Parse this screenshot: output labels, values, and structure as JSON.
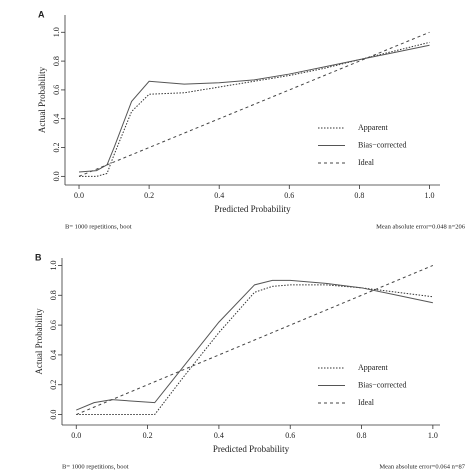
{
  "chart_data": [
    {
      "type": "line",
      "panel": "A",
      "xlabel": "Predicted Probability",
      "ylabel": "Actual Probability",
      "note_left": "B= 1000 repetitions, boot",
      "note_right": "Mean absolute error=0.048 n=206",
      "x": [
        0,
        0.05,
        0.08,
        0.1,
        0.15,
        0.2,
        0.3,
        0.4,
        0.5,
        0.6,
        0.7,
        0.8,
        0.9,
        1.0
      ],
      "series": [
        {
          "name": "Apparent",
          "color": "#333333",
          "dash": "1.5,1.5",
          "values": [
            0,
            0,
            0.02,
            0.15,
            0.45,
            0.57,
            0.58,
            0.62,
            0.66,
            0.7,
            0.75,
            0.81,
            0.87,
            0.93
          ]
        },
        {
          "name": "Bias−corrected",
          "color": "#555555",
          "dash": "none",
          "values": [
            0.03,
            0.04,
            0.08,
            0.2,
            0.52,
            0.66,
            0.64,
            0.65,
            0.67,
            0.71,
            0.76,
            0.81,
            0.86,
            0.91
          ]
        },
        {
          "name": "Ideal",
          "color": "#444444",
          "dash": "3,3",
          "values": [
            0,
            0.05,
            0.08,
            0.1,
            0.15,
            0.2,
            0.3,
            0.4,
            0.5,
            0.6,
            0.7,
            0.8,
            0.9,
            1.0
          ]
        }
      ],
      "xlim": [
        -0.04,
        1.03
      ],
      "ylim": [
        -0.06,
        1.12
      ],
      "xticks": [
        {
          "value": 0,
          "label": "0.0"
        },
        0.2,
        0.4,
        0.6,
        0.8,
        {
          "value": 1,
          "label": "1.0"
        }
      ],
      "yticks": [
        {
          "value": 0,
          "label": "0.0"
        },
        0.2,
        0.4,
        0.6,
        0.8,
        {
          "value": 1,
          "label": "1.0"
        }
      ],
      "legend": "bottom-right"
    },
    {
      "type": "line",
      "panel": "B",
      "xlabel": "Predicted Probability",
      "ylabel": "Actual Probability",
      "note_left": "B= 1000 repetitions, boot",
      "note_right": "Mean absolute error=0.064 n=87",
      "x": [
        0,
        0.05,
        0.1,
        0.22,
        0.3,
        0.4,
        0.5,
        0.55,
        0.6,
        0.7,
        0.8,
        0.9,
        1.0
      ],
      "series": [
        {
          "name": "Apparent",
          "color": "#333333",
          "dash": "1.5,1.5",
          "values": [
            0,
            0,
            0,
            0,
            0.25,
            0.55,
            0.82,
            0.86,
            0.87,
            0.87,
            0.85,
            0.82,
            0.79
          ]
        },
        {
          "name": "Bias−corrected",
          "color": "#555555",
          "dash": "none",
          "values": [
            0.03,
            0.08,
            0.1,
            0.08,
            0.32,
            0.62,
            0.87,
            0.9,
            0.9,
            0.88,
            0.85,
            0.8,
            0.75
          ]
        },
        {
          "name": "Ideal",
          "color": "#444444",
          "dash": "3,3",
          "values": [
            0,
            0.05,
            0.1,
            0.22,
            0.3,
            0.4,
            0.5,
            0.55,
            0.6,
            0.7,
            0.8,
            0.9,
            1.0
          ]
        }
      ],
      "xlim": [
        -0.04,
        1.02
      ],
      "ylim": [
        -0.07,
        1.05
      ],
      "xticks": [
        {
          "value": 0,
          "label": "0.0"
        },
        0.2,
        0.4,
        0.6,
        0.8,
        {
          "value": 1,
          "label": "1.0"
        }
      ],
      "yticks": [
        {
          "value": 0,
          "label": "0.0"
        },
        0.2,
        0.4,
        0.6,
        0.8,
        {
          "value": 1,
          "label": "1.0"
        }
      ],
      "legend": "bottom-right"
    }
  ]
}
